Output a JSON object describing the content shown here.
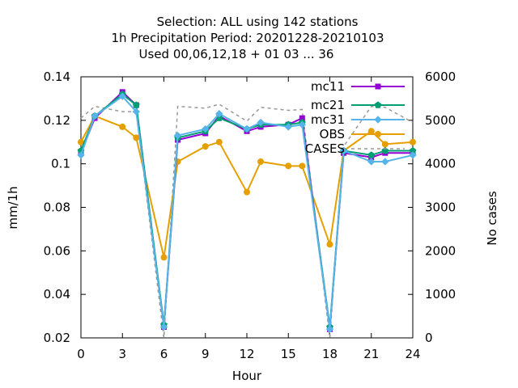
{
  "chart_data": {
    "type": "line",
    "title_lines": [
      "Selection: ALL using   142 stations",
      "1h Precipitation   Period: 20201228-20210103",
      "Used  00,06,12,18 + 01 03 ... 36"
    ],
    "xlabel": "Hour",
    "ylabel": "mm/1h",
    "y2label": "No cases",
    "xlim": [
      0,
      24
    ],
    "ylim": [
      0.02,
      0.14
    ],
    "y2lim": [
      0,
      6000
    ],
    "xticks": [
      "0",
      "3",
      "6",
      "9",
      "12",
      "15",
      "18",
      "21",
      "24"
    ],
    "yticks": [
      "0.02",
      "0.04",
      "0.06",
      "0.08",
      "0.1",
      "0.12",
      "0.14"
    ],
    "y2ticks": [
      "0",
      "1000",
      "2000",
      "3000",
      "4000",
      "5000",
      "6000"
    ],
    "grid": false,
    "legend_position": "top-right",
    "x": [
      0,
      1,
      3,
      4,
      6,
      7,
      9,
      10,
      12,
      13,
      15,
      16,
      18,
      19,
      21,
      22,
      24
    ],
    "series": [
      {
        "name": "mc11",
        "color": "#9400d3",
        "marker": "square",
        "axis": "y",
        "values": [
          0.105,
          0.121,
          0.133,
          0.127,
          0.025,
          0.111,
          0.114,
          0.122,
          0.115,
          0.117,
          0.118,
          0.121,
          0.024,
          0.105,
          0.103,
          0.105,
          0.105
        ]
      },
      {
        "name": "mc21",
        "color": "#009e73",
        "marker": "pentagon",
        "axis": "y",
        "values": [
          0.106,
          0.122,
          0.132,
          0.127,
          0.026,
          0.112,
          0.115,
          0.121,
          0.116,
          0.118,
          0.118,
          0.119,
          0.025,
          0.106,
          0.104,
          0.106,
          0.106
        ]
      },
      {
        "name": "mc31",
        "color": "#56b4e9",
        "marker": "diamond",
        "axis": "y",
        "values": [
          0.104,
          0.122,
          0.131,
          0.124,
          0.025,
          0.113,
          0.116,
          0.123,
          0.116,
          0.119,
          0.117,
          0.118,
          0.024,
          0.106,
          0.101,
          0.101,
          0.104
        ]
      },
      {
        "name": "OBS",
        "color": "#e69f00",
        "marker": "circle",
        "axis": "y",
        "values": [
          0.11,
          0.122,
          0.117,
          0.112,
          0.057,
          0.101,
          0.108,
          0.11,
          0.087,
          0.101,
          0.099,
          0.099,
          0.063,
          0.106,
          0.115,
          0.109,
          0.11
        ]
      },
      {
        "name": "CASES",
        "color": "#999999",
        "marker": "none",
        "dash": true,
        "axis": "y2",
        "values": [
          5050,
          5320,
          5200,
          5200,
          0,
          5320,
          5280,
          5370,
          4980,
          5300,
          5230,
          5250,
          0,
          4400,
          5320,
          5300,
          4950
        ]
      }
    ]
  }
}
